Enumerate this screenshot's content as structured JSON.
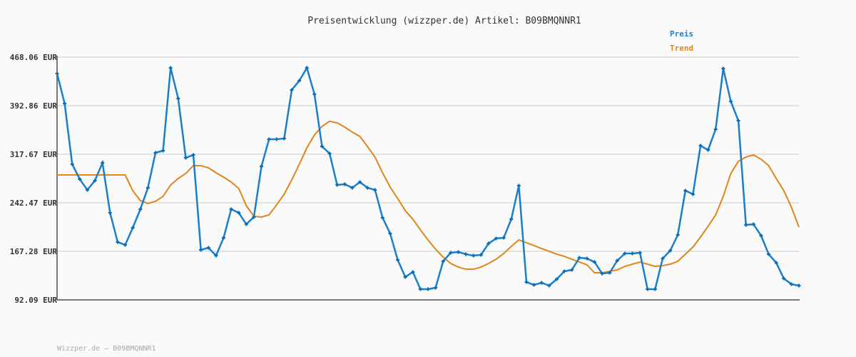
{
  "chart_data": {
    "type": "line",
    "title": "Preisentwicklung (wizzper.de) Artikel: B09BMQNNR1",
    "xlabel": "",
    "ylabel": "",
    "ylim": [
      92.09,
      468.06
    ],
    "yticks": [
      "92.09 EUR",
      "167.28 EUR",
      "242.47 EUR",
      "317.67 EUR",
      "392.86 EUR",
      "468.06 EUR"
    ],
    "ytick_values": [
      92.09,
      167.28,
      242.47,
      317.67,
      392.86,
      468.06
    ],
    "grid": true,
    "legend_position": "top-right",
    "series": [
      {
        "name": "Preis",
        "color": "#1a7fca",
        "markers": true,
        "values": [
          442.6,
          396.2,
          302.2,
          279.0,
          262.4,
          276.8,
          304.4,
          227.0,
          181.7,
          177.2,
          203.8,
          232.5,
          265.7,
          319.9,
          323.2,
          451.5,
          403.9,
          312.1,
          316.6,
          169.5,
          172.8,
          160.6,
          188.3,
          232.5,
          227.0,
          209.3,
          220.4,
          298.9,
          340.9,
          340.9,
          342.0,
          417.2,
          431.6,
          451.5,
          410.6,
          329.8,
          318.8,
          270.1,
          271.2,
          265.7,
          274.6,
          265.7,
          262.4,
          219.3,
          194.9,
          154.0,
          127.5,
          135.2,
          108.7,
          108.7,
          110.9,
          151.8,
          165.1,
          166.2,
          162.9,
          160.6,
          161.8,
          179.4,
          187.2,
          188.3,
          217.0,
          269.0,
          119.7,
          115.3,
          118.6,
          114.2,
          124.1,
          136.3,
          138.5,
          157.3,
          156.2,
          150.7,
          132.9,
          134.1,
          152.9,
          163.9,
          163.9,
          165.1,
          108.7,
          108.7,
          156.2,
          168.4,
          192.7,
          261.3,
          255.7,
          330.9,
          324.3,
          356.4,
          450.4,
          399.5,
          369.6,
          208.2,
          209.3,
          191.6,
          162.9,
          149.6,
          125.2,
          116.4,
          114.2
        ]
      },
      {
        "name": "Trend",
        "color": "#e2841a",
        "markers": false,
        "values": [
          285.6,
          285.6,
          285.6,
          285.6,
          285.6,
          285.6,
          285.6,
          285.6,
          285.6,
          285.6,
          261.3,
          245.8,
          241.4,
          244.7,
          252.4,
          270.1,
          280.1,
          287.8,
          300.0,
          300.0,
          296.6,
          288.9,
          282.3,
          274.6,
          264.6,
          238.1,
          221.5,
          220.4,
          223.7,
          239.2,
          255.7,
          277.9,
          302.2,
          327.6,
          347.5,
          360.8,
          368.6,
          366.3,
          359.7,
          351.9,
          345.3,
          329.8,
          313.3,
          288.9,
          266.8,
          249.1,
          230.3,
          217.0,
          200.5,
          185.0,
          170.6,
          158.4,
          148.5,
          142.9,
          139.6,
          139.6,
          142.9,
          148.5,
          155.1,
          163.9,
          175.0,
          185.0,
          180.6,
          176.2,
          171.7,
          167.3,
          162.9,
          159.5,
          155.1,
          150.7,
          146.3,
          134.1,
          134.1,
          136.3,
          138.5,
          144.0,
          147.4,
          150.7,
          147.4,
          144.0,
          145.1,
          147.4,
          151.8,
          162.9,
          173.9,
          189.4,
          206.0,
          223.7,
          252.4,
          287.8,
          306.6,
          313.3,
          316.6,
          309.9,
          300.0,
          280.1,
          261.3,
          235.8,
          204.9
        ]
      }
    ]
  },
  "footer": "Wizzper.de – B09BMQNNR1"
}
